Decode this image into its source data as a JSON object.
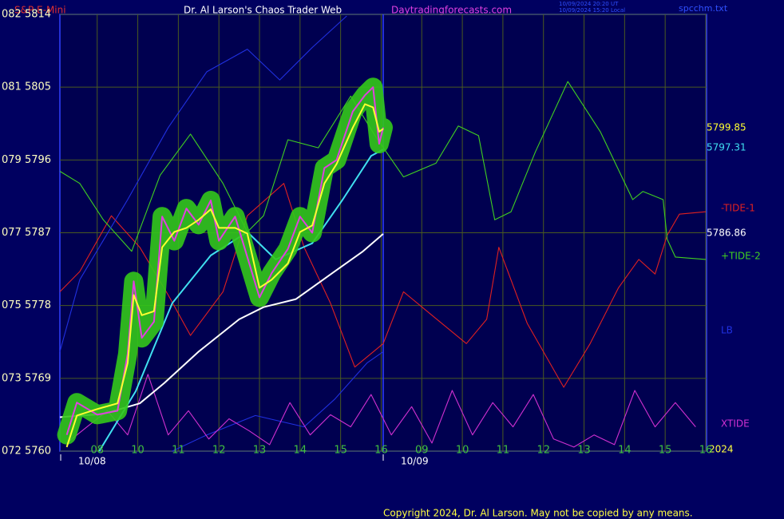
{
  "chart_data": {
    "type": "line",
    "symbol": "S&P E-Mini",
    "title": "Dr. Al Larson's Chaos Trader Web",
    "website": "Daytradingforecasts.com",
    "timestamps": [
      "10/09/2024 20:20 UT",
      "10/09/2024 15:20 Local"
    ],
    "file": "spcchm.txt",
    "year": "2024",
    "copyright": "Copyright 2024, Dr. Al Larson. May not be copied by any means.",
    "ylim": [
      5760,
      5814
    ],
    "yticks": [
      {
        "value": 5814,
        "label": "082 5814"
      },
      {
        "value": 5805,
        "label": "081 5805"
      },
      {
        "value": 5796,
        "label": "079 5796"
      },
      {
        "value": 5787,
        "label": "077 5787"
      },
      {
        "value": 5778,
        "label": "075 5778"
      },
      {
        "value": 5769,
        "label": "073 5769"
      },
      {
        "value": 5760,
        "label": "072 5760"
      }
    ],
    "xlim": [
      -0.92,
      15.02
    ],
    "xticks": [
      {
        "value": 0,
        "label": "08"
      },
      {
        "value": 1,
        "label": "10"
      },
      {
        "value": 2,
        "label": "11"
      },
      {
        "value": 3,
        "label": "12"
      },
      {
        "value": 4,
        "label": "13"
      },
      {
        "value": 5,
        "label": "14"
      },
      {
        "value": 6,
        "label": "15"
      },
      {
        "value": 7,
        "label": "16"
      },
      {
        "value": 8,
        "label": "09"
      },
      {
        "value": 9,
        "label": "10"
      },
      {
        "value": 10,
        "label": "11"
      },
      {
        "value": 11,
        "label": "12"
      },
      {
        "value": 12,
        "label": "13"
      },
      {
        "value": 13,
        "label": "14"
      },
      {
        "value": 14,
        "label": "15"
      },
      {
        "value": 15,
        "label": "16"
      }
    ],
    "date_ticks": [
      {
        "value": -0.9,
        "label": "10/08"
      },
      {
        "value": 7.05,
        "label": "10/09"
      }
    ],
    "grid": true,
    "series": [
      {
        "name": "-TIDE-1",
        "color": "#e02020",
        "x": [
          -0.92,
          -0.43,
          0.35,
          1.05,
          1.75,
          2.3,
          3.1,
          3.7,
          4.6,
          5.1,
          5.75,
          6.35,
          7.05,
          7.55,
          8.25,
          9.1,
          9.6,
          9.9,
          10.6,
          11.5,
          12.15,
          12.85,
          13.35,
          13.75,
          14.05,
          14.35,
          15.0
        ],
        "values": [
          5779.7,
          5782.2,
          5789.1,
          5785.2,
          5779.3,
          5774.3,
          5779.7,
          5789.1,
          5793.1,
          5785.2,
          5778.3,
          5770.4,
          5773.3,
          5779.7,
          5776.8,
          5773.3,
          5776.3,
          5785.2,
          5775.8,
          5767.9,
          5773.3,
          5780.2,
          5783.7,
          5781.9,
          5786.7,
          5789.3,
          5789.6
        ]
      },
      {
        "name": "+TIDE-2",
        "color": "#40d020",
        "x": [
          -0.92,
          -0.43,
          0.15,
          0.85,
          1.55,
          2.3,
          3.1,
          3.7,
          4.1,
          4.7,
          5.45,
          6.25,
          6.85,
          7.55,
          8.35,
          8.9,
          9.4,
          9.8,
          10.2,
          10.8,
          11.6,
          12.4,
          13.2,
          13.45,
          13.95,
          14.05,
          14.25,
          15.0
        ],
        "values": [
          5794.6,
          5793.1,
          5788.6,
          5784.7,
          5794.1,
          5799.2,
          5793.1,
          5787.1,
          5789.1,
          5798.5,
          5797.5,
          5803.9,
          5799.0,
          5793.9,
          5795.6,
          5800.2,
          5799.0,
          5788.6,
          5789.6,
          5797.0,
          5805.7,
          5799.5,
          5791.1,
          5792.1,
          5791.1,
          5786.2,
          5784.0,
          5783.7
        ]
      },
      {
        "name": "LB",
        "color": "#2030e0",
        "x": [
          -0.92,
          -0.43,
          0.75,
          1.75,
          2.7,
          3.7,
          4.5,
          5.3,
          6.15
        ],
        "values": [
          5772.3,
          5781.2,
          5791.1,
          5800.0,
          5806.9,
          5809.7,
          5805.9,
          5809.9,
          5813.8
        ]
      },
      {
        "color": "#2030e0",
        "x": [
          1.85,
          2.7,
          3.9,
          5.1,
          5.85,
          6.65,
          7.05
        ],
        "values": [
          5760.0,
          5762.0,
          5764.4,
          5763.0,
          5766.4,
          5770.9,
          5772.3
        ]
      },
      {
        "name": "XTIDE",
        "color": "#d030d0",
        "x": [
          -0.75,
          -0.25,
          0.25,
          0.75,
          1.25,
          1.75,
          2.25,
          2.75,
          3.25,
          3.75,
          4.25,
          4.75,
          5.25,
          5.75,
          6.25,
          6.75,
          7.25,
          7.75,
          8.25,
          8.75,
          9.25,
          9.75,
          10.25,
          10.75,
          11.25,
          11.75,
          12.25,
          12.75,
          13.25,
          13.75,
          14.25,
          14.75
        ],
        "values": [
          5761,
          5763,
          5765,
          5762,
          5769.5,
          5762,
          5765,
          5761.5,
          5764,
          5762.5,
          5760.8,
          5766,
          5762,
          5764.5,
          5763,
          5767,
          5762,
          5765.5,
          5761,
          5767.5,
          5762,
          5766,
          5763,
          5767,
          5761.5,
          5760.5,
          5762,
          5760.8,
          5767.5,
          5763,
          5766,
          5763
        ]
      },
      {
        "color": "#ffffff",
        "x": [
          -0.92,
          0.15,
          1.05,
          1.65,
          2.5,
          3.5,
          4.1,
          4.9,
          5.85,
          6.55,
          7.05
        ],
        "values": [
          5764.2,
          5764.6,
          5765.9,
          5768.4,
          5772.3,
          5776.3,
          5777.8,
          5778.8,
          5782.2,
          5784.7,
          5786.86
        ]
      },
      {
        "color": "#40e0f0",
        "x": [
          0.05,
          0.95,
          1.85,
          2.8,
          3.7,
          4.4,
          5.3,
          6.05,
          6.75,
          7.05
        ],
        "values": [
          5760.0,
          5767.4,
          5778.3,
          5784.2,
          5787.1,
          5783.7,
          5785.7,
          5791.1,
          5796.5,
          5797.31
        ]
      },
      {
        "color": "#e040e0",
        "halo": "#33c81a",
        "x": [
          -0.75,
          -0.5,
          0,
          0.5,
          0.75,
          0.9,
          1.1,
          1.4,
          1.6,
          1.9,
          2.2,
          2.5,
          2.8,
          3.0,
          3.4,
          3.7,
          4.0,
          4.3,
          4.7,
          5.0,
          5.3,
          5.6,
          5.9,
          6.3,
          6.6,
          6.8,
          6.95,
          7.05
        ],
        "values": [
          5762,
          5766,
          5764.5,
          5765,
          5772,
          5781,
          5774,
          5776,
          5789,
          5786,
          5790,
          5788,
          5791,
          5786,
          5789,
          5784,
          5779,
          5782,
          5785,
          5789,
          5787,
          5795,
          5796,
          5802,
          5804,
          5805,
          5798,
          5800
        ]
      },
      {
        "color": "#ffff30",
        "x": [
          -0.75,
          -0.5,
          0,
          0.5,
          0.75,
          0.9,
          1.1,
          1.4,
          1.6,
          1.9,
          2.2,
          2.5,
          2.8,
          3.0,
          3.4,
          3.7,
          4.0,
          4.3,
          4.7,
          5.0,
          5.3,
          5.6,
          5.9,
          6.3,
          6.6,
          6.8,
          6.95,
          7.05
        ],
        "values": [
          5760.5,
          5764.4,
          5765.2,
          5765.9,
          5770.9,
          5779.3,
          5776.8,
          5777.3,
          5785.2,
          5787.1,
          5787.6,
          5788.6,
          5789.9,
          5787.6,
          5787.6,
          5786.9,
          5780.2,
          5781.2,
          5783.2,
          5787.1,
          5787.9,
          5793.1,
          5795.5,
          5800.0,
          5802.9,
          5802.5,
          5799.5,
          5799.85
        ]
      }
    ]
  }
}
